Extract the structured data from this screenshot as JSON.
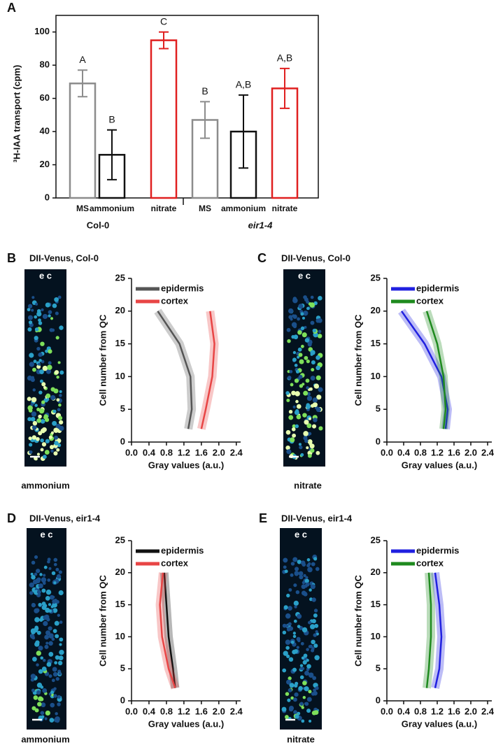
{
  "chart_data": [
    {
      "type": "bar",
      "panel": "A",
      "ylabel": "³H-IAA transport (cpm)",
      "categories": [
        "MS",
        "ammonium",
        "nitrate",
        "MS",
        "ammonium",
        "nitrate"
      ],
      "groups": [
        "Col-0",
        "eir1-4"
      ],
      "values": [
        69,
        26,
        95,
        47,
        40,
        66
      ],
      "errors": [
        8,
        15,
        5,
        11,
        22,
        12
      ],
      "annotations": [
        "A",
        "B",
        "C",
        "B",
        "A,B",
        "A,B"
      ],
      "colors": [
        "#8c8c8c",
        "#111111",
        "#e02020",
        "#8c8c8c",
        "#111111",
        "#e02020"
      ],
      "ylim": [
        0,
        110
      ],
      "yticks": [
        0,
        20,
        40,
        60,
        80,
        100
      ]
    },
    {
      "type": "line",
      "panel": "B",
      "title": "DII-Venus, Col-0",
      "image_marker": "e c",
      "image_label": "ammonium",
      "xlabel": "Gray values (a.u.)",
      "ylabel": "Cell number from QC",
      "series": [
        {
          "name": "epidermis",
          "color": "#555555",
          "x": [
            1.3,
            1.38,
            1.35,
            1.1,
            0.6
          ],
          "values": [
            2,
            5,
            10,
            15,
            20
          ]
        },
        {
          "name": "cortex",
          "color": "#e84545",
          "x": [
            1.6,
            1.7,
            1.85,
            1.9,
            1.8
          ],
          "values": [
            2,
            5,
            10,
            15,
            20
          ]
        }
      ],
      "xlim": [
        0,
        2.5
      ],
      "xticks": [
        {
          "value": 0,
          "label": "0.0"
        },
        0.4,
        0.8,
        1.2,
        1.6,
        {
          "value": 2,
          "label": "2.0"
        },
        2.4
      ],
      "ylim": [
        0,
        25
      ],
      "yticks": [
        0,
        5,
        10,
        15,
        20,
        25
      ]
    },
    {
      "type": "line",
      "panel": "C",
      "title": "DII-Venus, Col-0",
      "image_marker": "e c",
      "image_label": "nitrate",
      "xlabel": "Gray values (a.u.)",
      "ylabel": "Cell number from QC",
      "series": [
        {
          "name": "epidermis",
          "color": "#2020e0",
          "x": [
            1.4,
            1.45,
            1.3,
            0.9,
            0.35
          ],
          "values": [
            2,
            5,
            10,
            15,
            20
          ]
        },
        {
          "name": "cortex",
          "color": "#1e8a1e",
          "x": [
            1.35,
            1.4,
            1.35,
            1.2,
            0.95
          ],
          "values": [
            2,
            5,
            10,
            15,
            20
          ]
        }
      ],
      "xlim": [
        0,
        2.5
      ],
      "xticks": [
        {
          "value": 0,
          "label": "0.0"
        },
        0.4,
        0.8,
        1.2,
        1.6,
        {
          "value": 2,
          "label": "2.0"
        },
        2.4
      ],
      "ylim": [
        0,
        25
      ],
      "yticks": [
        0,
        5,
        10,
        15,
        20,
        25
      ]
    },
    {
      "type": "line",
      "panel": "D",
      "title": "DII-Venus, eir1-4",
      "image_marker": "e c",
      "image_label": "ammonium",
      "xlabel": "Gray values (a.u.)",
      "ylabel": "Cell number from QC",
      "series": [
        {
          "name": "epidermis",
          "color": "#111111",
          "x": [
            1.0,
            0.95,
            0.85,
            0.8,
            0.75
          ],
          "values": [
            2,
            5,
            10,
            15,
            20
          ]
        },
        {
          "name": "cortex",
          "color": "#e84545",
          "x": [
            1.0,
            0.85,
            0.7,
            0.65,
            0.72
          ],
          "values": [
            2,
            5,
            10,
            15,
            20
          ]
        }
      ],
      "xlim": [
        0,
        2.5
      ],
      "xticks": [
        {
          "value": 0,
          "label": "0.0"
        },
        0.4,
        0.8,
        1.2,
        1.6,
        {
          "value": 2,
          "label": "2.0"
        },
        2.4
      ],
      "ylim": [
        0,
        25
      ],
      "yticks": [
        0,
        5,
        10,
        15,
        20,
        25
      ]
    },
    {
      "type": "line",
      "panel": "E",
      "title": "DII-Venus, eir1-4",
      "image_marker": "e c",
      "image_label": "nitrate",
      "xlabel": "Gray values (a.u.)",
      "ylabel": "Cell number from QC",
      "series": [
        {
          "name": "epidermis",
          "color": "#2020e0",
          "x": [
            1.15,
            1.25,
            1.3,
            1.25,
            1.15
          ],
          "values": [
            2,
            5,
            10,
            15,
            20
          ]
        },
        {
          "name": "cortex",
          "color": "#1e8a1e",
          "x": [
            0.95,
            1.0,
            1.05,
            1.05,
            1.0
          ],
          "values": [
            2,
            5,
            10,
            15,
            20
          ]
        }
      ],
      "xlim": [
        0,
        2.5
      ],
      "xticks": [
        {
          "value": 0,
          "label": "0.0"
        },
        0.4,
        0.8,
        1.2,
        1.6,
        {
          "value": 2,
          "label": "2.0"
        },
        2.4
      ],
      "ylim": [
        0,
        25
      ],
      "yticks": [
        0,
        5,
        10,
        15,
        20,
        25
      ]
    }
  ]
}
